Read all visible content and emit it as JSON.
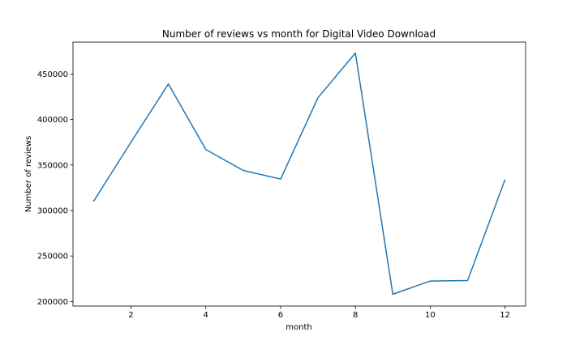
{
  "chart_data": {
    "type": "line",
    "title": "Number of reviews vs month for Digital Video Download",
    "xlabel": "month",
    "ylabel": "Number of reviews",
    "xlim": [
      0.45,
      12.55
    ],
    "ylim": [
      195000,
      485000
    ],
    "xticks": [
      2,
      4,
      6,
      8,
      10,
      12
    ],
    "yticks": [
      200000,
      250000,
      300000,
      350000,
      400000,
      450000
    ],
    "grid": false,
    "series": [
      {
        "color": "#1f77b4",
        "x": [
          1,
          2,
          3,
          4,
          5,
          6,
          7,
          8,
          9,
          10,
          11,
          12
        ],
        "y": [
          310000,
          375000,
          439000,
          367000,
          344000,
          334500,
          424000,
          473000,
          208000,
          222500,
          223000,
          334000
        ]
      }
    ]
  }
}
